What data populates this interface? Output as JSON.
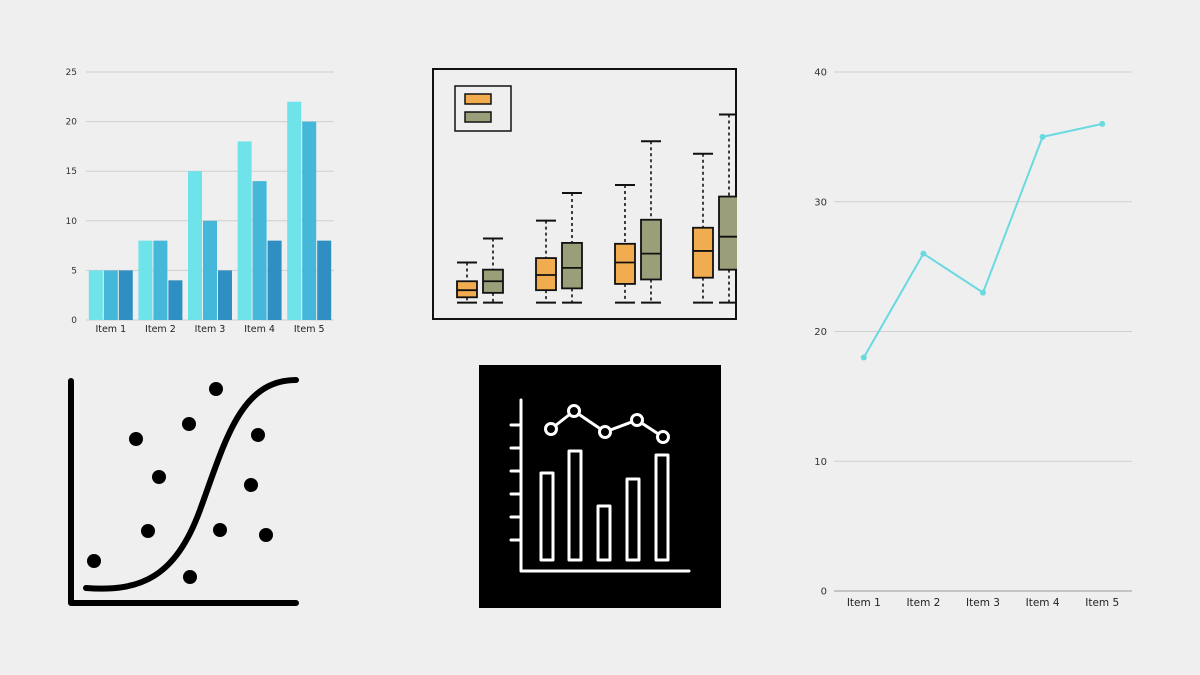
{
  "chart_data": [
    {
      "type": "bar",
      "categories": [
        "Item 1",
        "Item 2",
        "Item 3",
        "Item 4",
        "Item 5"
      ],
      "series": [
        {
          "values": [
            5,
            8,
            15,
            18,
            22
          ],
          "color": "#6ee3ea"
        },
        {
          "values": [
            5,
            8,
            10,
            14,
            20
          ],
          "color": "#45b8d9"
        },
        {
          "values": [
            5,
            4,
            5,
            8,
            8
          ],
          "color": "#2f8fc2"
        }
      ],
      "ylim": [
        0,
        25
      ],
      "yticks": [
        0,
        5,
        10,
        15,
        20,
        25
      ],
      "grid": true
    },
    {
      "type": "box",
      "groups": 4,
      "legend_placement": "top-left",
      "series": [
        {
          "color": "#f2ac50",
          "boxes": [
            {
              "whisker_low": 0.6,
              "q1": 1.2,
              "median": 2.0,
              "q3": 3.0,
              "whisker_high": 5.1
            },
            {
              "whisker_low": 0.6,
              "q1": 2.0,
              "median": 3.7,
              "q3": 5.6,
              "whisker_high": 9.8
            },
            {
              "whisker_low": 0.6,
              "q1": 2.7,
              "median": 5.1,
              "q3": 7.2,
              "whisker_high": 13.8
            },
            {
              "whisker_low": 0.6,
              "q1": 3.4,
              "median": 6.4,
              "q3": 9.0,
              "whisker_high": 17.3
            }
          ]
        },
        {
          "color": "#9a9f79",
          "boxes": [
            {
              "whisker_low": 0.6,
              "q1": 1.7,
              "median": 3.0,
              "q3": 4.3,
              "whisker_high": 7.8
            },
            {
              "whisker_low": 0.6,
              "q1": 2.2,
              "median": 4.5,
              "q3": 7.3,
              "whisker_high": 12.9
            },
            {
              "whisker_low": 0.6,
              "q1": 3.2,
              "median": 6.1,
              "q3": 9.9,
              "whisker_high": 18.7
            },
            {
              "whisker_low": 0.6,
              "q1": 4.3,
              "median": 8.0,
              "q3": 12.5,
              "whisker_high": 21.7
            }
          ]
        }
      ],
      "ylim": [
        0,
        24
      ]
    },
    {
      "type": "line",
      "categories": [
        "Item 1",
        "Item 2",
        "Item 3",
        "Item 4",
        "Item 5"
      ],
      "series": [
        {
          "values": [
            18,
            26,
            23,
            35,
            36
          ],
          "color": "#6ad9e0"
        }
      ],
      "ylim": [
        0,
        40
      ],
      "yticks": [
        0,
        10,
        20,
        30,
        40
      ],
      "grid": true
    }
  ],
  "icons": {
    "scatter_curve": "scatter-sigmoid-curve-icon",
    "analytics": "bar-line-analytics-icon"
  }
}
